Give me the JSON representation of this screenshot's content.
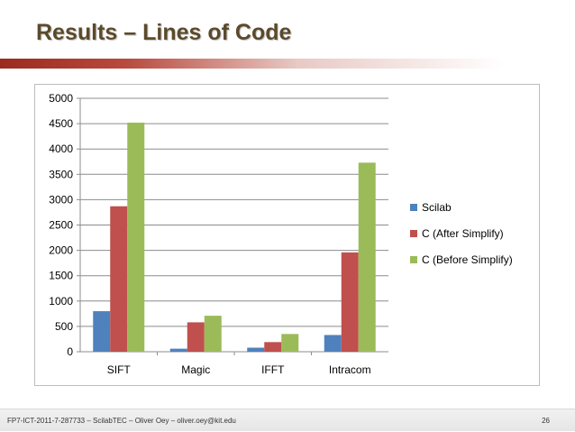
{
  "slide": {
    "title": "Results – Lines of Code",
    "footer_text": "FP7-ICT-2011-7-287733 – ScilabTEC – Oliver Oey – oliver.oey@kit.edu",
    "page_number": "26"
  },
  "colors": {
    "title": "#5b4a2a",
    "accent_bar": "#9b2a1f"
  },
  "chart_data": {
    "type": "bar",
    "categories": [
      "SIFT",
      "Magic",
      "IFFT",
      "Intracom"
    ],
    "series": [
      {
        "name": "Scilab",
        "color": "#4f81bd",
        "values": [
          800,
          60,
          80,
          330
        ]
      },
      {
        "name": "C (After Simplify)",
        "color": "#c0504d",
        "values": [
          2870,
          580,
          190,
          1960
        ]
      },
      {
        "name": "C (Before Simplify)",
        "color": "#9bbb59",
        "values": [
          4520,
          710,
          350,
          3730
        ]
      }
    ],
    "ylim": [
      0,
      5000
    ],
    "yticks": [
      "0",
      "500",
      "1000",
      "1500",
      "2000",
      "2500",
      "3000",
      "3500",
      "4000",
      "4500",
      "5000"
    ],
    "grid": true,
    "legend_position": "right"
  }
}
